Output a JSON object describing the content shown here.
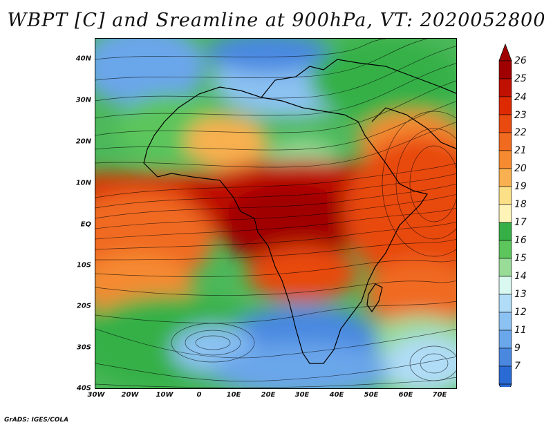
{
  "title": "WBPT [C] and Sreamline at 900hPa, VT: 2020052800",
  "credit": "GrADS: IGES/COLA",
  "map": {
    "lat_labels": [
      "40N",
      "30N",
      "20N",
      "10N",
      "EQ",
      "10S",
      "20S",
      "30S",
      "40S"
    ],
    "lon_labels": [
      "30W",
      "20W",
      "10W",
      "0",
      "10E",
      "20E",
      "30E",
      "40E",
      "50E",
      "60E",
      "70E"
    ],
    "lat_range": [
      -40,
      45
    ],
    "lon_range": [
      -30,
      75
    ]
  },
  "colorbar": {
    "labels": [
      "26",
      "25",
      "24",
      "23",
      "22",
      "21",
      "20",
      "19",
      "18",
      "17",
      "16",
      "15",
      "14",
      "13",
      "12",
      "11",
      "9",
      "7"
    ],
    "colors": [
      "#a00000",
      "#c01000",
      "#dd2a00",
      "#e84a10",
      "#f06a20",
      "#f58a30",
      "#f8b050",
      "#fce088",
      "#fff4b8",
      "#36b046",
      "#5cc55c",
      "#98dc98",
      "#d8f8f0",
      "#b0dcf8",
      "#8cc2f2",
      "#6aa6ea",
      "#4a88e0",
      "#2a6ad4"
    ]
  }
}
